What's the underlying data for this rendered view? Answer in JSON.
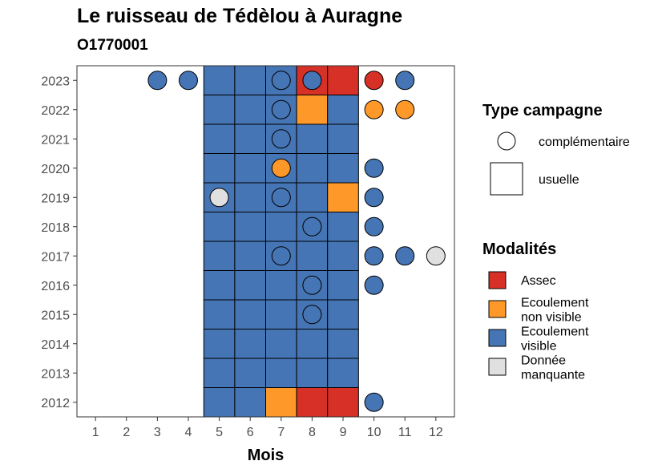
{
  "title": "Le ruisseau de Tédèlou à Auragne",
  "subtitle": "O1770001",
  "colors": {
    "assec": "#d73027",
    "ecoulement_non_visible": "#fe9929",
    "ecoulement_visible": "#4575b4",
    "donnee_manquante": "#e0e0e0"
  },
  "chart_data": {
    "type": "heatmap",
    "xlabel": "Mois",
    "ylabel": "",
    "x": [
      1,
      2,
      3,
      4,
      5,
      6,
      7,
      8,
      9,
      10,
      11,
      12
    ],
    "x_ticks": [
      "1",
      "2",
      "3",
      "4",
      "5",
      "6",
      "7",
      "8",
      "9",
      "10",
      "11",
      "12"
    ],
    "y": [
      2012,
      2013,
      2014,
      2015,
      2016,
      2017,
      2018,
      2019,
      2020,
      2021,
      2022,
      2023
    ],
    "y_ticks": [
      "2012",
      "2013",
      "2014",
      "2015",
      "2016",
      "2017",
      "2018",
      "2019",
      "2020",
      "2021",
      "2022",
      "2023"
    ],
    "grid": false,
    "legend_position": "right",
    "legend_type_title": "Type campagne",
    "legend_type": [
      {
        "key": "complementaire",
        "label": "complémentaire",
        "shape": "circle"
      },
      {
        "key": "usuelle",
        "label": "usuelle",
        "shape": "square"
      }
    ],
    "legend_modalites_title": "Modalités",
    "legend_modalites": [
      {
        "key": "assec",
        "label_lines": [
          "Assec"
        ]
      },
      {
        "key": "ecoulement_non_visible",
        "label_lines": [
          "Ecoulement",
          "non visible"
        ]
      },
      {
        "key": "ecoulement_visible",
        "label_lines": [
          "Ecoulement",
          "visible"
        ]
      },
      {
        "key": "donnee_manquante",
        "label_lines": [
          "Donnée",
          "manquante"
        ]
      }
    ],
    "usuelle": [
      {
        "year": 2023,
        "month": 5,
        "m": "ecoulement_visible"
      },
      {
        "year": 2023,
        "month": 6,
        "m": "ecoulement_visible"
      },
      {
        "year": 2023,
        "month": 7,
        "m": "ecoulement_visible"
      },
      {
        "year": 2023,
        "month": 8,
        "m": "assec"
      },
      {
        "year": 2023,
        "month": 9,
        "m": "assec"
      },
      {
        "year": 2022,
        "month": 5,
        "m": "ecoulement_visible"
      },
      {
        "year": 2022,
        "month": 6,
        "m": "ecoulement_visible"
      },
      {
        "year": 2022,
        "month": 7,
        "m": "ecoulement_visible"
      },
      {
        "year": 2022,
        "month": 8,
        "m": "ecoulement_non_visible"
      },
      {
        "year": 2022,
        "month": 9,
        "m": "ecoulement_visible"
      },
      {
        "year": 2021,
        "month": 5,
        "m": "ecoulement_visible"
      },
      {
        "year": 2021,
        "month": 6,
        "m": "ecoulement_visible"
      },
      {
        "year": 2021,
        "month": 7,
        "m": "ecoulement_visible"
      },
      {
        "year": 2021,
        "month": 8,
        "m": "ecoulement_visible"
      },
      {
        "year": 2021,
        "month": 9,
        "m": "ecoulement_visible"
      },
      {
        "year": 2020,
        "month": 5,
        "m": "ecoulement_visible"
      },
      {
        "year": 2020,
        "month": 6,
        "m": "ecoulement_visible"
      },
      {
        "year": 2020,
        "month": 7,
        "m": "ecoulement_visible"
      },
      {
        "year": 2020,
        "month": 8,
        "m": "ecoulement_visible"
      },
      {
        "year": 2020,
        "month": 9,
        "m": "ecoulement_visible"
      },
      {
        "year": 2019,
        "month": 5,
        "m": "ecoulement_visible"
      },
      {
        "year": 2019,
        "month": 6,
        "m": "ecoulement_visible"
      },
      {
        "year": 2019,
        "month": 7,
        "m": "ecoulement_visible"
      },
      {
        "year": 2019,
        "month": 8,
        "m": "ecoulement_visible"
      },
      {
        "year": 2019,
        "month": 9,
        "m": "ecoulement_non_visible"
      },
      {
        "year": 2018,
        "month": 5,
        "m": "ecoulement_visible"
      },
      {
        "year": 2018,
        "month": 6,
        "m": "ecoulement_visible"
      },
      {
        "year": 2018,
        "month": 7,
        "m": "ecoulement_visible"
      },
      {
        "year": 2018,
        "month": 8,
        "m": "ecoulement_visible"
      },
      {
        "year": 2018,
        "month": 9,
        "m": "ecoulement_visible"
      },
      {
        "year": 2017,
        "month": 5,
        "m": "ecoulement_visible"
      },
      {
        "year": 2017,
        "month": 6,
        "m": "ecoulement_visible"
      },
      {
        "year": 2017,
        "month": 7,
        "m": "ecoulement_visible"
      },
      {
        "year": 2017,
        "month": 8,
        "m": "ecoulement_visible"
      },
      {
        "year": 2017,
        "month": 9,
        "m": "ecoulement_visible"
      },
      {
        "year": 2016,
        "month": 5,
        "m": "ecoulement_visible"
      },
      {
        "year": 2016,
        "month": 6,
        "m": "ecoulement_visible"
      },
      {
        "year": 2016,
        "month": 7,
        "m": "ecoulement_visible"
      },
      {
        "year": 2016,
        "month": 8,
        "m": "ecoulement_visible"
      },
      {
        "year": 2016,
        "month": 9,
        "m": "ecoulement_visible"
      },
      {
        "year": 2015,
        "month": 5,
        "m": "ecoulement_visible"
      },
      {
        "year": 2015,
        "month": 6,
        "m": "ecoulement_visible"
      },
      {
        "year": 2015,
        "month": 7,
        "m": "ecoulement_visible"
      },
      {
        "year": 2015,
        "month": 8,
        "m": "ecoulement_visible"
      },
      {
        "year": 2015,
        "month": 9,
        "m": "ecoulement_visible"
      },
      {
        "year": 2014,
        "month": 5,
        "m": "ecoulement_visible"
      },
      {
        "year": 2014,
        "month": 6,
        "m": "ecoulement_visible"
      },
      {
        "year": 2014,
        "month": 7,
        "m": "ecoulement_visible"
      },
      {
        "year": 2014,
        "month": 8,
        "m": "ecoulement_visible"
      },
      {
        "year": 2014,
        "month": 9,
        "m": "ecoulement_visible"
      },
      {
        "year": 2013,
        "month": 5,
        "m": "ecoulement_visible"
      },
      {
        "year": 2013,
        "month": 6,
        "m": "ecoulement_visible"
      },
      {
        "year": 2013,
        "month": 7,
        "m": "ecoulement_visible"
      },
      {
        "year": 2013,
        "month": 8,
        "m": "ecoulement_visible"
      },
      {
        "year": 2013,
        "month": 9,
        "m": "ecoulement_visible"
      },
      {
        "year": 2012,
        "month": 5,
        "m": "ecoulement_visible"
      },
      {
        "year": 2012,
        "month": 6,
        "m": "ecoulement_visible"
      },
      {
        "year": 2012,
        "month": 7,
        "m": "ecoulement_non_visible"
      },
      {
        "year": 2012,
        "month": 8,
        "m": "assec"
      },
      {
        "year": 2012,
        "month": 9,
        "m": "assec"
      }
    ],
    "complementaire": [
      {
        "year": 2023,
        "month": 3,
        "m": "ecoulement_visible"
      },
      {
        "year": 2023,
        "month": 4,
        "m": "ecoulement_visible"
      },
      {
        "year": 2023,
        "month": 7,
        "m": "ecoulement_visible"
      },
      {
        "year": 2023,
        "month": 8,
        "m": "ecoulement_visible"
      },
      {
        "year": 2023,
        "month": 10,
        "m": "assec"
      },
      {
        "year": 2023,
        "month": 11,
        "m": "ecoulement_visible"
      },
      {
        "year": 2022,
        "month": 7,
        "m": "ecoulement_visible"
      },
      {
        "year": 2022,
        "month": 10,
        "m": "ecoulement_non_visible"
      },
      {
        "year": 2022,
        "month": 11,
        "m": "ecoulement_non_visible"
      },
      {
        "year": 2021,
        "month": 7,
        "m": "ecoulement_visible"
      },
      {
        "year": 2020,
        "month": 7,
        "m": "ecoulement_non_visible"
      },
      {
        "year": 2020,
        "month": 10,
        "m": "ecoulement_visible"
      },
      {
        "year": 2019,
        "month": 5,
        "m": "donnee_manquante"
      },
      {
        "year": 2019,
        "month": 7,
        "m": "ecoulement_visible"
      },
      {
        "year": 2019,
        "month": 10,
        "m": "ecoulement_visible"
      },
      {
        "year": 2018,
        "month": 8,
        "m": "ecoulement_visible"
      },
      {
        "year": 2018,
        "month": 10,
        "m": "ecoulement_visible"
      },
      {
        "year": 2017,
        "month": 7,
        "m": "ecoulement_visible"
      },
      {
        "year": 2017,
        "month": 10,
        "m": "ecoulement_visible"
      },
      {
        "year": 2017,
        "month": 11,
        "m": "ecoulement_visible"
      },
      {
        "year": 2017,
        "month": 12,
        "m": "donnee_manquante"
      },
      {
        "year": 2016,
        "month": 8,
        "m": "ecoulement_visible"
      },
      {
        "year": 2016,
        "month": 10,
        "m": "ecoulement_visible"
      },
      {
        "year": 2015,
        "month": 8,
        "m": "ecoulement_visible"
      },
      {
        "year": 2012,
        "month": 10,
        "m": "ecoulement_visible"
      }
    ]
  }
}
